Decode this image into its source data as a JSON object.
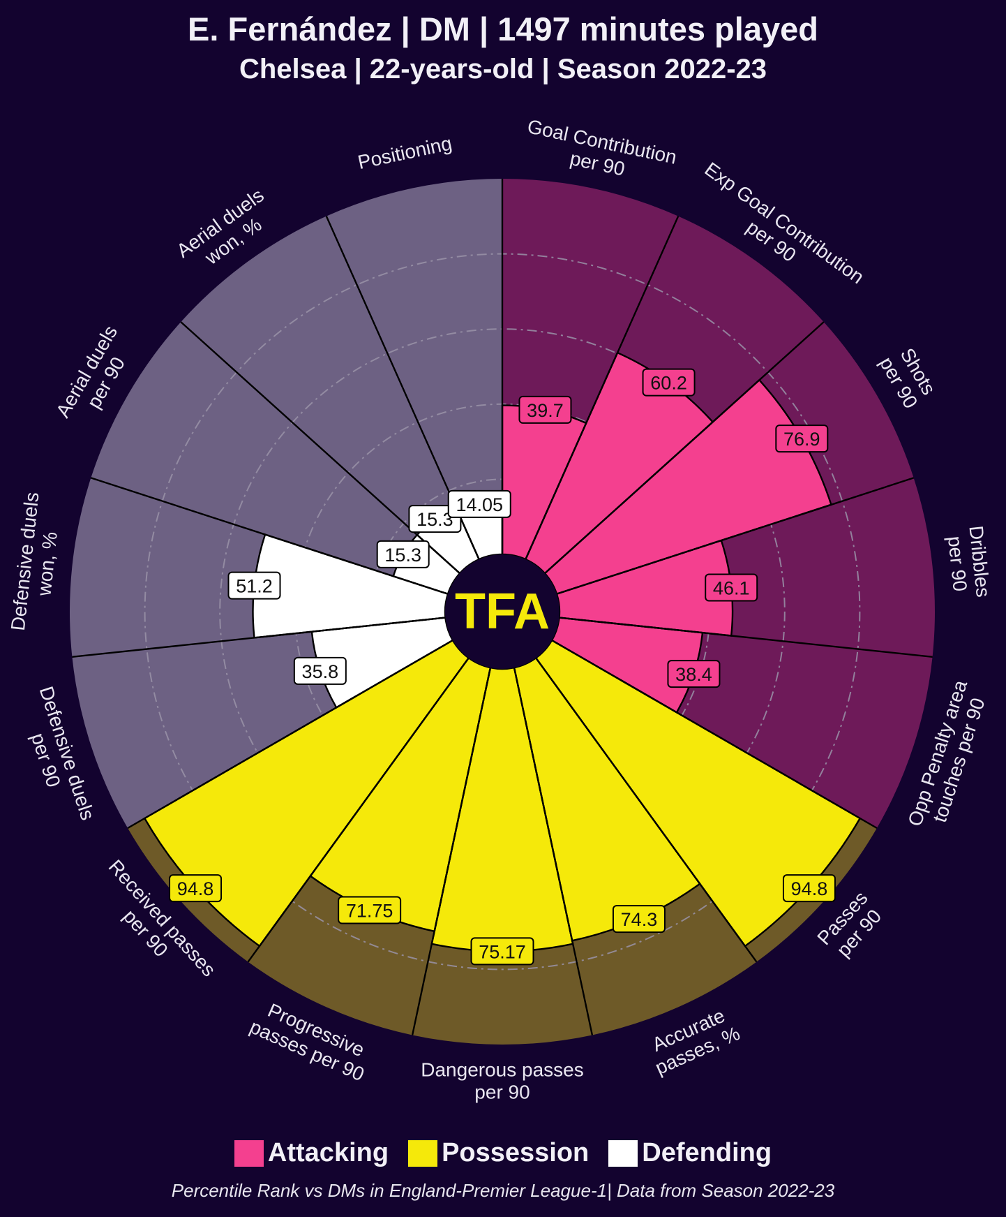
{
  "title": "E. Fernández | DM | 1497 minutes played",
  "subtitle": "Chelsea | 22-years-old | Season 2022-23",
  "logo_text": "TFA",
  "footnote": "Percentile Rank vs DMs in England-Premier League-1| Data from Season 2022-23",
  "legend": [
    {
      "label": "Attacking",
      "color": "#f4408f"
    },
    {
      "label": "Possession",
      "color": "#f5e90a"
    },
    {
      "label": "Defending",
      "color": "#ffffff"
    }
  ],
  "colors": {
    "background": "#13032f",
    "attacking": "#f4408f",
    "possession": "#f5e90a",
    "defending": "#ffffff",
    "attacking_bg": "#6e1a59",
    "possession_bg": "#6e5a28",
    "defending_bg": "#6d6183",
    "logo_text": "#f5e90a"
  },
  "chart_data": {
    "type": "pizza",
    "scale": [
      0,
      100
    ],
    "gridlines": [
      20,
      40,
      60,
      80
    ],
    "start_angle_deg": 0,
    "direction": "clockwise",
    "slices": [
      {
        "label": "Goal Contribution\nper 90",
        "value": 39.7,
        "group": "Attacking"
      },
      {
        "label": "Exp Goal Contribution\nper 90",
        "value": 60.2,
        "group": "Attacking"
      },
      {
        "label": "Shots\nper 90",
        "value": 76.9,
        "group": "Attacking"
      },
      {
        "label": "Dribbles\nper 90",
        "value": 46.1,
        "group": "Attacking"
      },
      {
        "label": "Opp Penalty area\ntouches per 90",
        "value": 38.4,
        "group": "Attacking"
      },
      {
        "label": "Passes\nper 90",
        "value": 94.8,
        "group": "Possession"
      },
      {
        "label": "Accurate\npasses, %",
        "value": 74.3,
        "group": "Possession"
      },
      {
        "label": "Dangerous passes\nper 90",
        "value": 75.17,
        "group": "Possession"
      },
      {
        "label": "Progressive\npasses per 90",
        "value": 71.75,
        "group": "Possession"
      },
      {
        "label": "Received passes\nper 90",
        "value": 94.8,
        "group": "Possession"
      },
      {
        "label": "Defensive duels\nper 90",
        "value": 35.8,
        "group": "Defending"
      },
      {
        "label": "Defensive duels\nwon, %",
        "value": 51.2,
        "group": "Defending"
      },
      {
        "label": "Aerial duels\nper 90",
        "value": 15.3,
        "group": "Defending"
      },
      {
        "label": "Aerial duels\nwon, %",
        "value": 15.3,
        "group": "Defending"
      },
      {
        "label": "Positioning",
        "value": 14.05,
        "group": "Defending"
      }
    ]
  }
}
